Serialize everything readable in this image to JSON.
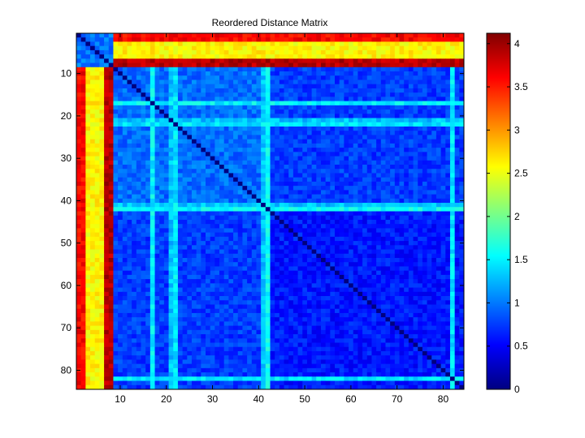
{
  "chart_data": {
    "type": "heatmap",
    "title": "Reordered Distance Matrix",
    "xlabel": "",
    "ylabel": "",
    "n": 84,
    "xlim": [
      0.5,
      84.5
    ],
    "ylim": [
      0.5,
      84.5
    ],
    "y_direction": "reversed",
    "x_ticks": [
      10,
      20,
      30,
      40,
      50,
      60,
      70,
      80
    ],
    "y_ticks": [
      10,
      20,
      30,
      40,
      50,
      60,
      70,
      80
    ],
    "colormap": "jet",
    "color_range": [
      0,
      4.12
    ],
    "colorbar_ticks": [
      0,
      0.5,
      1,
      1.5,
      2,
      2.5,
      3,
      3.5,
      4
    ],
    "diagonal_value": 0,
    "blocks": [
      {
        "label": "outlier group",
        "indices": [
          1,
          2,
          3,
          4,
          5,
          6,
          7,
          8
        ]
      },
      {
        "label": "main group",
        "indices_range": [
          9,
          84
        ]
      }
    ],
    "typical_values": {
      "within_outlier_group": 1.0,
      "outlier_to_main_cols_1_2": 3.6,
      "outlier_to_main_cols_3_6": 2.6,
      "outlier_to_main_cols_7_8": 3.9,
      "within_main_group_upper_left": 0.95,
      "within_main_group_lower_right": 0.6,
      "main_block_cross_region": 0.75
    },
    "highlight_rows_cols": [
      {
        "index": 17,
        "value": 1.5
      },
      {
        "index": 21,
        "value": 1.3
      },
      {
        "index": 22,
        "value": 1.45
      },
      {
        "index": 41,
        "value": 1.3
      },
      {
        "index": 42,
        "value": 1.55
      },
      {
        "index": 82,
        "value": 1.45
      }
    ]
  }
}
